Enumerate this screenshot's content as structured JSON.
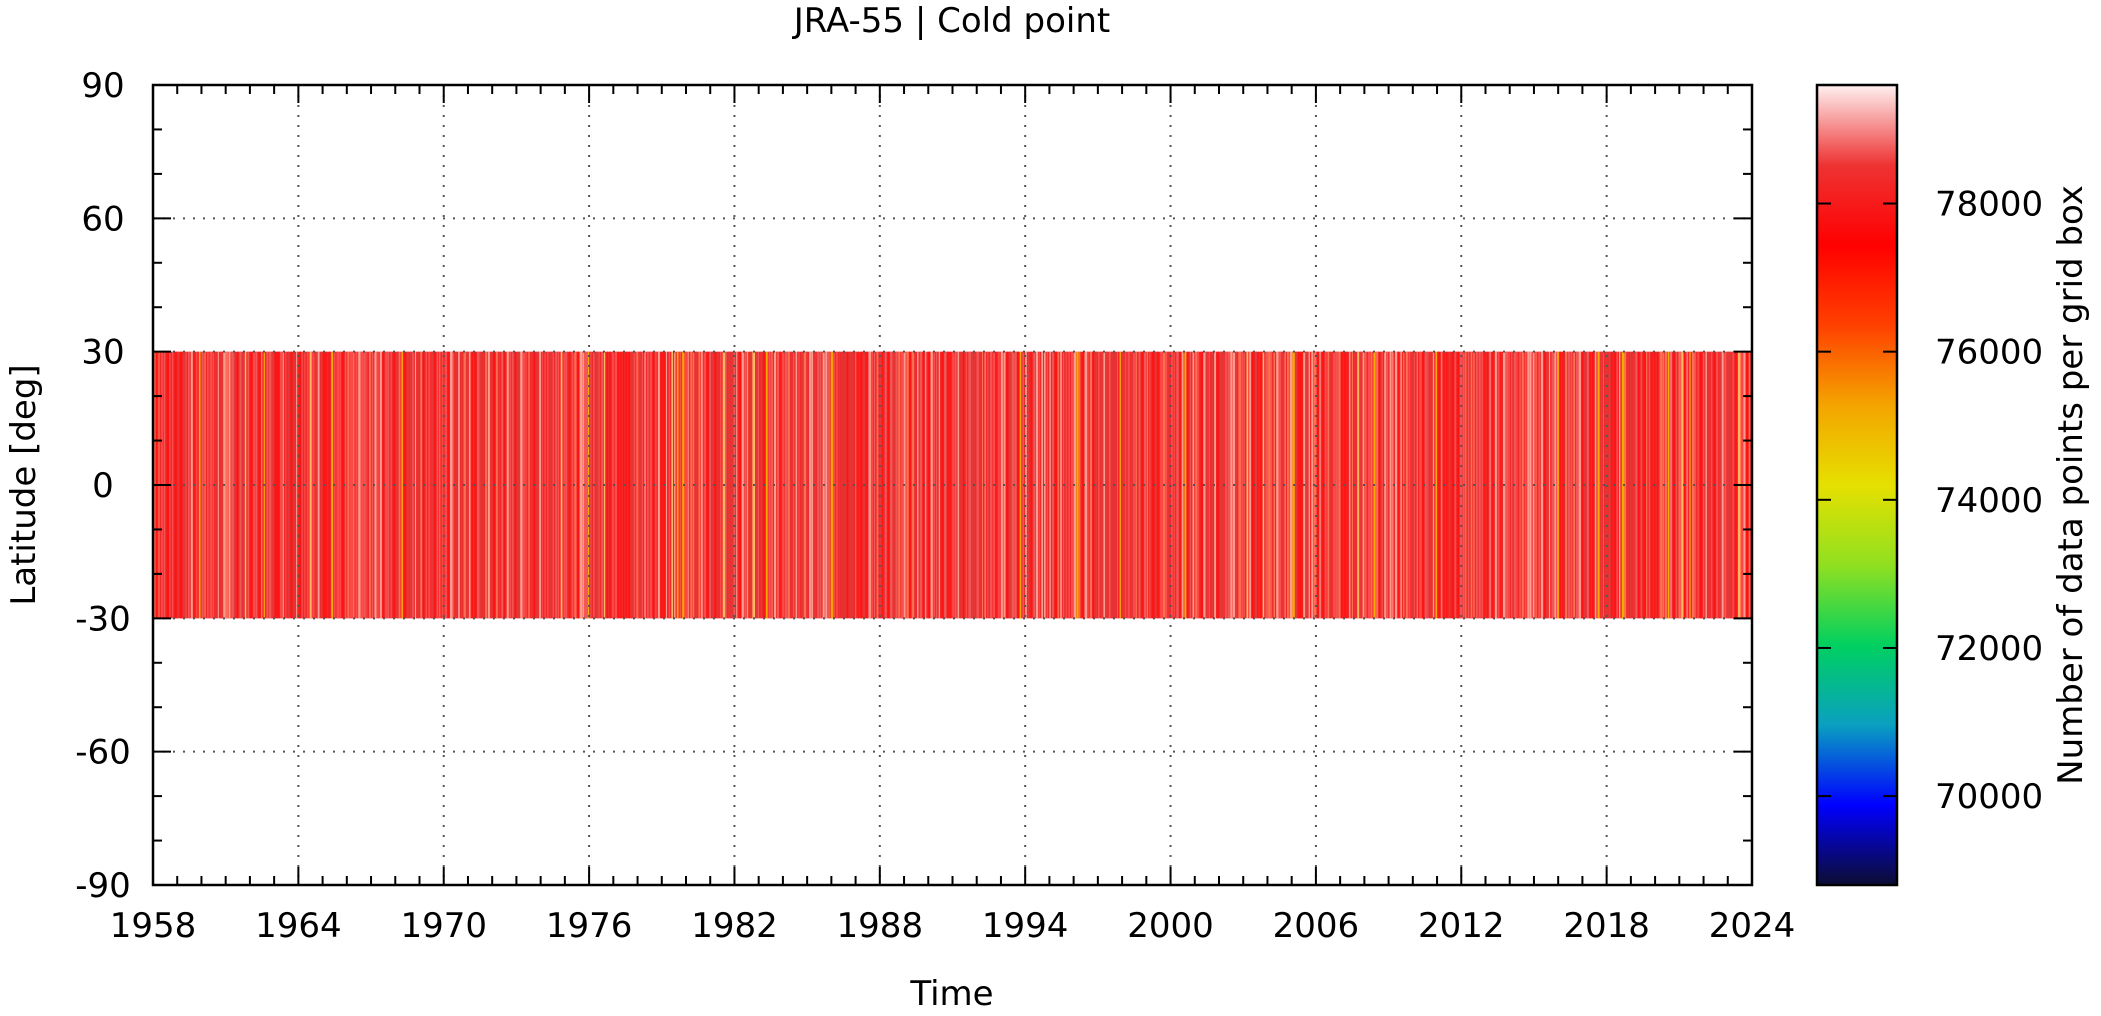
{
  "chart_data": {
    "type": "heatmap",
    "title": "JRA-55 | Cold point",
    "xlabel": "Time",
    "ylabel": "Latitude [deg]",
    "colorbar_label": "Number of data points per grid box",
    "xlim": [
      1958,
      2024
    ],
    "ylim": [
      -90,
      90
    ],
    "x_ticks": [
      "1958",
      "1964",
      "1970",
      "1976",
      "1982",
      "1988",
      "1994",
      "2000",
      "2006",
      "2012",
      "2018",
      "2024"
    ],
    "y_ticks": [
      "90",
      "60",
      "30",
      "0",
      "-30",
      "-60",
      "-90"
    ],
    "colorbar_range": [
      68800,
      79600
    ],
    "colorbar_ticks": [
      "70000",
      "72000",
      "74000",
      "76000",
      "78000"
    ],
    "data_lat_range": [
      -30,
      30
    ],
    "typical_value": 78000,
    "grid": true,
    "colormap": [
      "#0d0d33",
      "#0000ff",
      "#0aa0c0",
      "#00d060",
      "#90e020",
      "#e6e000",
      "#f4a400",
      "#ff4000",
      "#ff0000",
      "#ee3333",
      "#fff0f0"
    ]
  }
}
